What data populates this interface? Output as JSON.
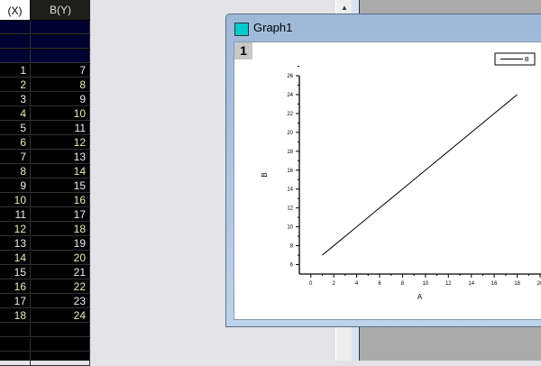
{
  "worksheet": {
    "columns": [
      "(X)",
      "B(Y)"
    ],
    "rows": [
      [
        1,
        7
      ],
      [
        2,
        8
      ],
      [
        3,
        9
      ],
      [
        4,
        10
      ],
      [
        5,
        11
      ],
      [
        6,
        12
      ],
      [
        7,
        13
      ],
      [
        8,
        14
      ],
      [
        9,
        15
      ],
      [
        10,
        16
      ],
      [
        11,
        17
      ],
      [
        12,
        18
      ],
      [
        13,
        19
      ],
      [
        14,
        20
      ],
      [
        15,
        21
      ],
      [
        16,
        22
      ],
      [
        17,
        23
      ],
      [
        18,
        24
      ]
    ]
  },
  "graph_window": {
    "title": "Graph1",
    "layer_label": "1"
  },
  "chart_data": {
    "type": "line",
    "x": [
      1,
      2,
      3,
      4,
      5,
      6,
      7,
      8,
      9,
      10,
      11,
      12,
      13,
      14,
      15,
      16,
      17,
      18
    ],
    "series": [
      {
        "name": "B",
        "values": [
          7,
          8,
          9,
          10,
          11,
          12,
          13,
          14,
          15,
          16,
          17,
          18,
          19,
          20,
          21,
          22,
          23,
          24
        ]
      }
    ],
    "xlabel": "A",
    "ylabel": "B",
    "xlim": [
      -1,
      20
    ],
    "ylim": [
      5,
      26
    ],
    "xticks": [
      0,
      2,
      4,
      6,
      8,
      10,
      12,
      14,
      16,
      18,
      20
    ],
    "yticks": [
      6,
      8,
      10,
      12,
      14,
      16,
      18,
      20,
      22,
      24,
      26
    ],
    "legend": "top-right",
    "grid": false
  }
}
